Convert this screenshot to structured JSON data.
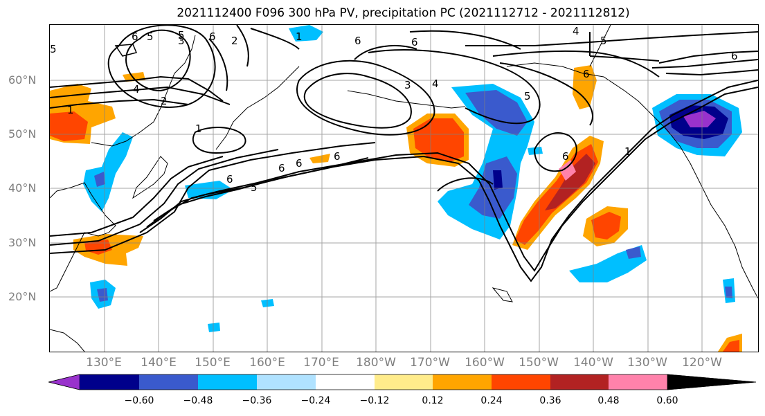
{
  "title": "2021112400 F096 300 hPa PV, precipitation PC (2021112712 - 2021112812)",
  "lat_labels": [
    "60°N",
    "50°N",
    "40°N",
    "30°N",
    "20°N"
  ],
  "lon_labels": [
    "130°E",
    "140°E",
    "150°E",
    "160°E",
    "170°E",
    "180°W",
    "170°W",
    "160°W",
    "150°W",
    "140°W",
    "130°W",
    "120°W"
  ],
  "contour_labels": [
    "6",
    "5",
    "3",
    "2",
    "1",
    "2",
    "4",
    "1",
    "6",
    "6",
    "5",
    "6",
    "6",
    "5",
    "3",
    "4",
    "5",
    "6",
    "4",
    "5",
    "6",
    "6",
    "6",
    "1",
    "1",
    "5",
    "6",
    "6"
  ],
  "colorbar": {
    "ticks": [
      "−0.60",
      "−0.48",
      "−0.36",
      "−0.24",
      "−0.12",
      "0.12",
      "0.24",
      "0.36",
      "0.48",
      "0.60"
    ],
    "colors": [
      "#9932cc",
      "#00008b",
      "#3a5acd",
      "#00bfff",
      "#b0e2ff",
      "#ffffff",
      "#ffec8b",
      "#ffa500",
      "#ff4500",
      "#b22222",
      "#ff82ab"
    ]
  }
}
